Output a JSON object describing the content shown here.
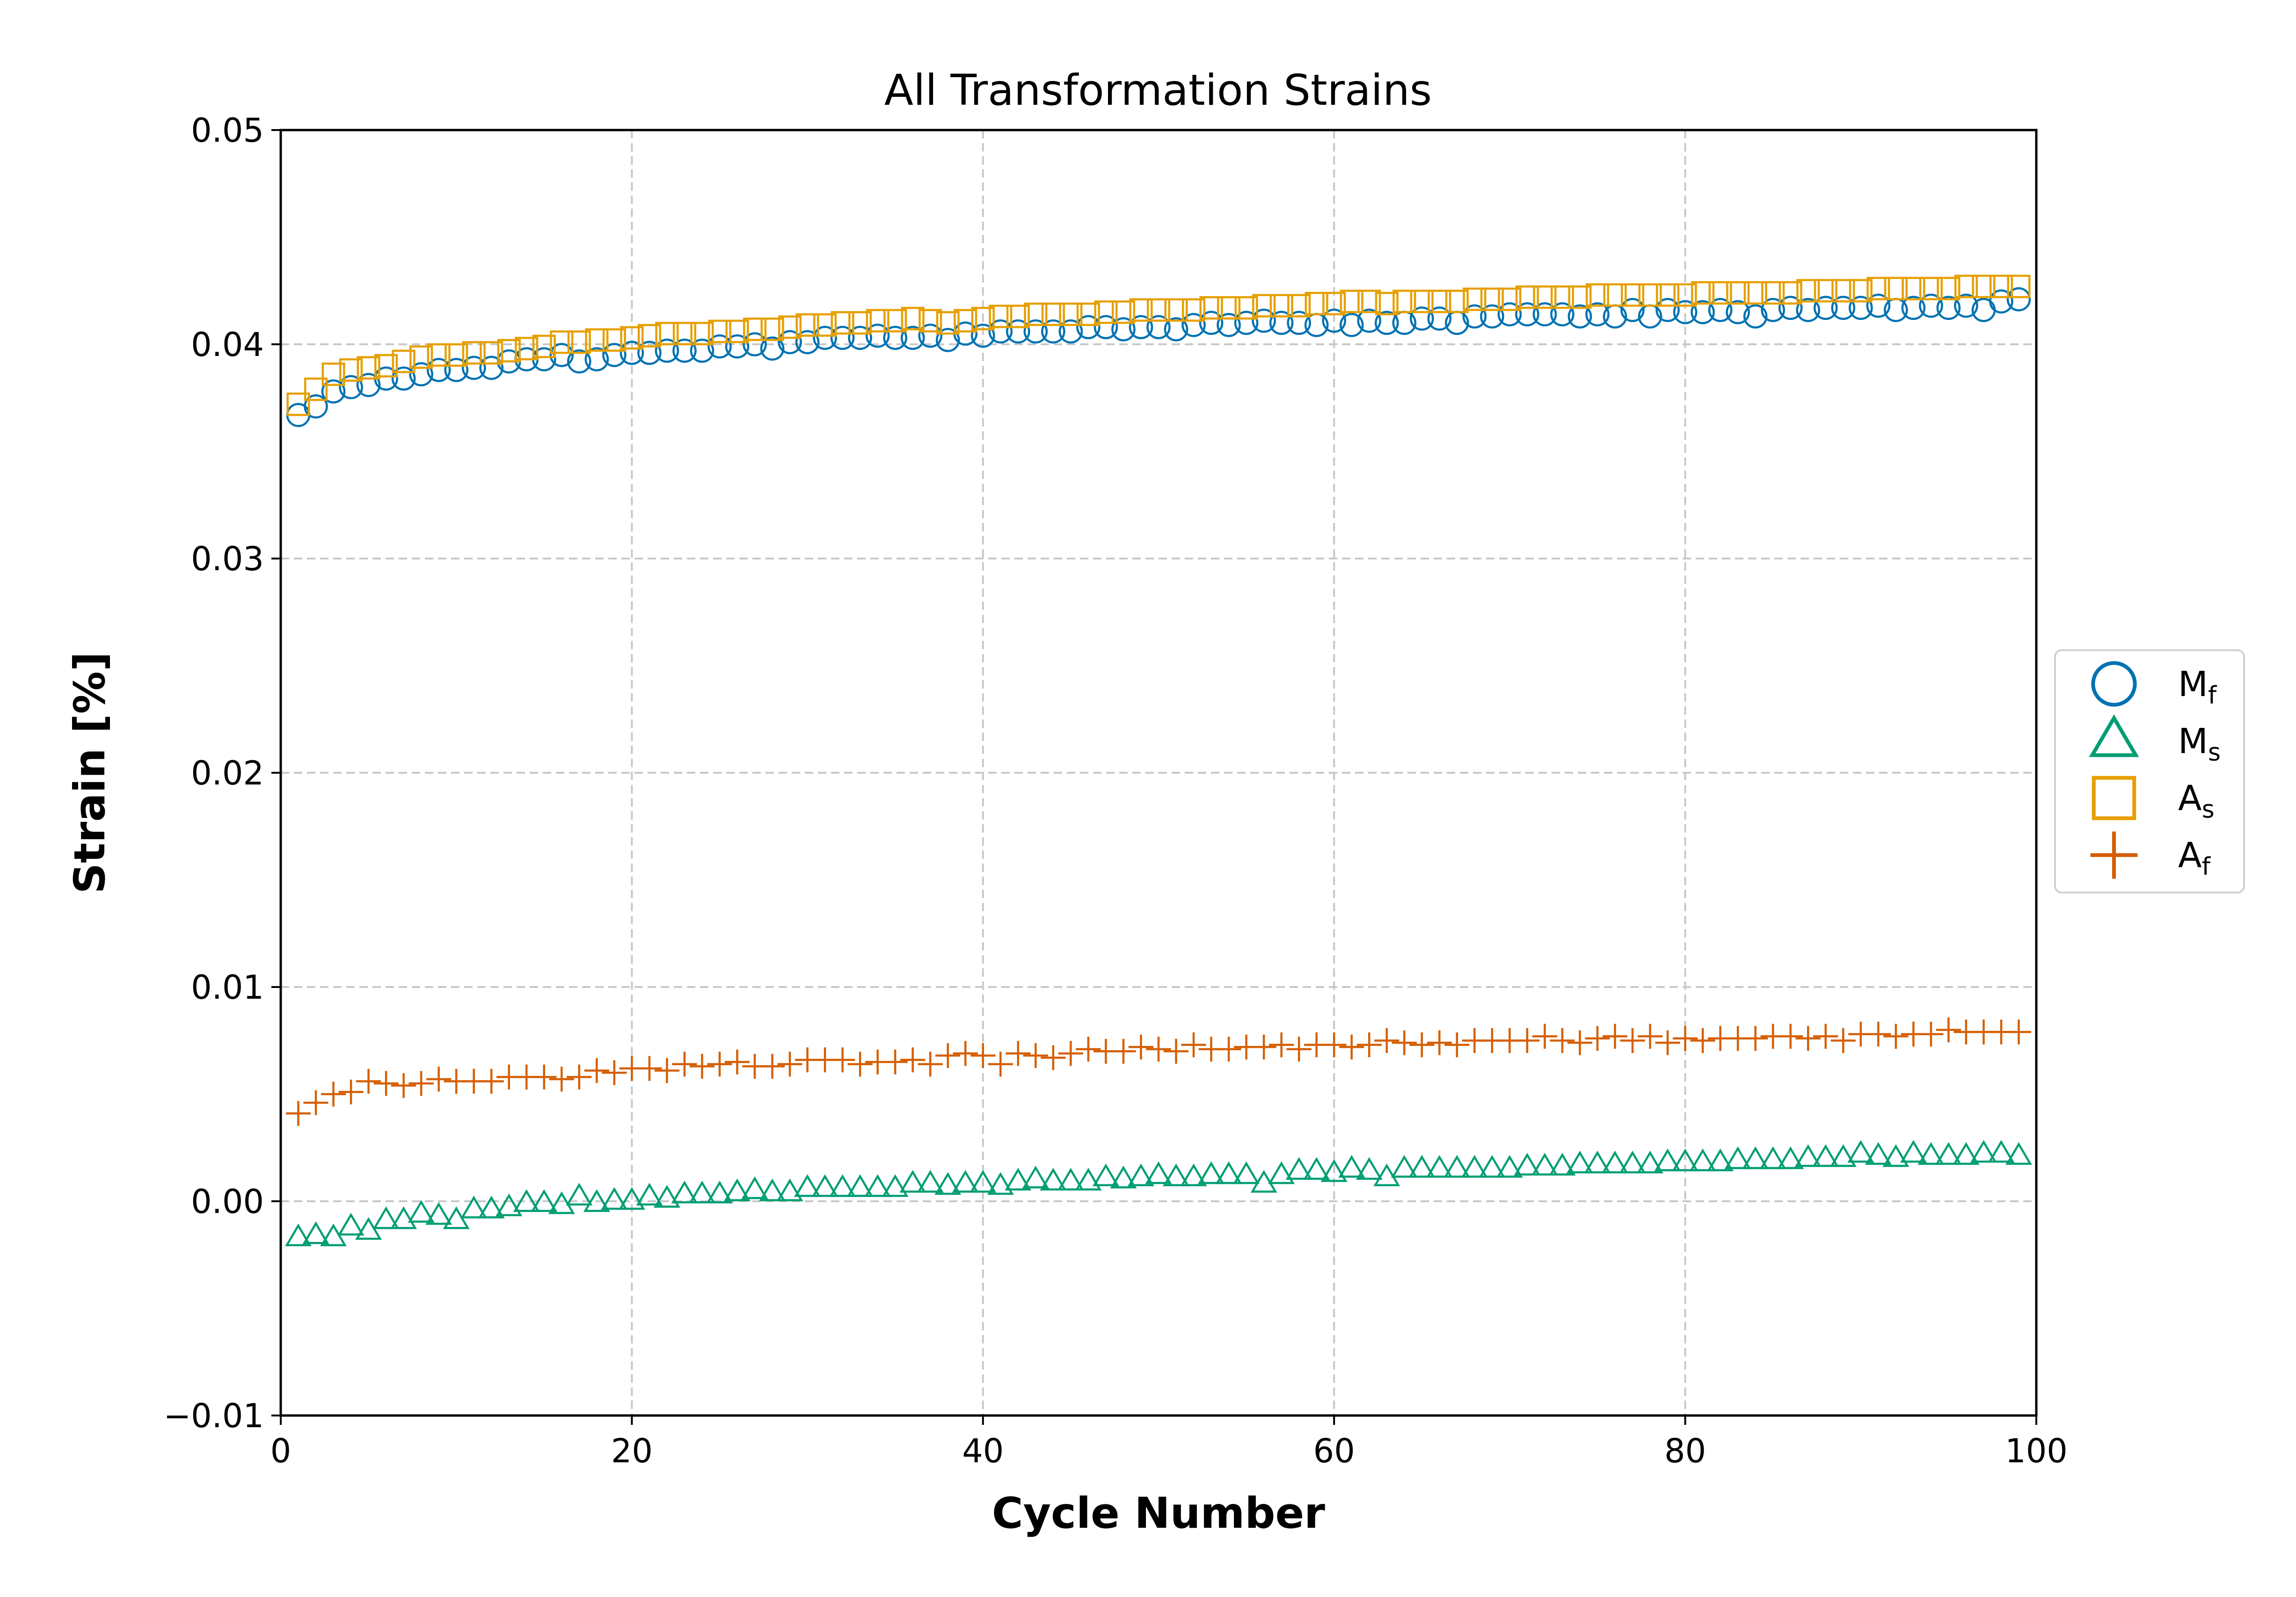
{
  "chart_data": {
    "type": "scatter",
    "title": "All Transformation Strains",
    "xlabel": "Cycle Number",
    "ylabel": "Strain [%]",
    "xlim": [
      0,
      100
    ],
    "ylim": [
      -0.01,
      0.05
    ],
    "x_ticks": [
      0,
      20,
      40,
      60,
      80,
      100
    ],
    "x_tick_labels": [
      "0",
      "20",
      "40",
      "60",
      "80",
      "100"
    ],
    "y_ticks": [
      -0.01,
      0.0,
      0.01,
      0.02,
      0.03,
      0.04,
      0.05
    ],
    "y_tick_labels": [
      "−0.01",
      "0.00",
      "0.01",
      "0.02",
      "0.03",
      "0.04",
      "0.05"
    ],
    "grid": true,
    "legend_position": "right (outside plot)",
    "x": [
      1,
      2,
      3,
      4,
      5,
      6,
      7,
      8,
      9,
      10,
      11,
      12,
      13,
      14,
      15,
      16,
      17,
      18,
      19,
      20,
      21,
      22,
      23,
      24,
      25,
      26,
      27,
      28,
      29,
      30,
      31,
      32,
      33,
      34,
      35,
      36,
      37,
      38,
      39,
      40,
      41,
      42,
      43,
      44,
      45,
      46,
      47,
      48,
      49,
      50,
      51,
      52,
      53,
      54,
      55,
      56,
      57,
      58,
      59,
      60,
      61,
      62,
      63,
      64,
      65,
      66,
      67,
      68,
      69,
      70,
      71,
      72,
      73,
      74,
      75,
      76,
      77,
      78,
      79,
      80,
      81,
      82,
      83,
      84,
      85,
      86,
      87,
      88,
      89,
      90,
      91,
      92,
      93,
      94,
      95,
      96,
      97,
      98,
      99
    ],
    "series": [
      {
        "name": "M",
        "subscript": "f",
        "marker": "circle",
        "color": "#0072B2",
        "values": [
          0.0367,
          0.0371,
          0.0378,
          0.038,
          0.0381,
          0.0384,
          0.0384,
          0.0386,
          0.0388,
          0.0388,
          0.0389,
          0.0389,
          0.0392,
          0.0393,
          0.0393,
          0.0395,
          0.0392,
          0.0393,
          0.0395,
          0.0396,
          0.0396,
          0.0397,
          0.0397,
          0.0397,
          0.0399,
          0.0399,
          0.04,
          0.0398,
          0.0401,
          0.0401,
          0.0403,
          0.0403,
          0.0403,
          0.0404,
          0.0403,
          0.0403,
          0.0404,
          0.0402,
          0.0405,
          0.0404,
          0.0406,
          0.0406,
          0.0406,
          0.0406,
          0.0406,
          0.0408,
          0.0408,
          0.0407,
          0.0408,
          0.0408,
          0.0407,
          0.0409,
          0.041,
          0.0409,
          0.041,
          0.0411,
          0.041,
          0.041,
          0.0409,
          0.0411,
          0.0409,
          0.0411,
          0.041,
          0.041,
          0.0412,
          0.0412,
          0.041,
          0.0413,
          0.0413,
          0.0414,
          0.0414,
          0.0414,
          0.0414,
          0.0413,
          0.0414,
          0.0413,
          0.0416,
          0.0413,
          0.0416,
          0.0415,
          0.0415,
          0.0416,
          0.0415,
          0.0413,
          0.0416,
          0.0417,
          0.0416,
          0.0417,
          0.0417,
          0.0417,
          0.0418,
          0.0416,
          0.0417,
          0.0418,
          0.0417,
          0.0418,
          0.0416,
          0.042,
          0.0421
        ]
      },
      {
        "name": "M",
        "subscript": "s",
        "marker": "triangle",
        "color": "#009E73",
        "values": [
          -0.0017,
          -0.0016,
          -0.0017,
          -0.0012,
          -0.0014,
          -0.0009,
          -0.0009,
          -0.0006,
          -0.0007,
          -0.0009,
          -0.0004,
          -0.0004,
          -0.0003,
          -0.0001,
          -0.0001,
          -0.0002,
          0.0002,
          -0.0001,
          0.0,
          0.0,
          0.0002,
          0.0001,
          0.0003,
          0.0003,
          0.0003,
          0.0004,
          0.0005,
          0.0004,
          0.0004,
          0.0006,
          0.0006,
          0.0006,
          0.0006,
          0.0006,
          0.0006,
          0.0008,
          0.0008,
          0.0007,
          0.0008,
          0.0008,
          0.0007,
          0.0009,
          0.001,
          0.0009,
          0.0009,
          0.0009,
          0.0011,
          0.001,
          0.0011,
          0.0012,
          0.0011,
          0.0011,
          0.0012,
          0.0012,
          0.0012,
          0.0008,
          0.0012,
          0.0014,
          0.0014,
          0.0013,
          0.0015,
          0.0014,
          0.0011,
          0.0015,
          0.0015,
          0.0015,
          0.0015,
          0.0015,
          0.0015,
          0.0015,
          0.0016,
          0.0016,
          0.0016,
          0.0017,
          0.0017,
          0.0017,
          0.0017,
          0.0017,
          0.0018,
          0.0018,
          0.0018,
          0.0018,
          0.0019,
          0.0019,
          0.0019,
          0.0019,
          0.002,
          0.002,
          0.002,
          0.0022,
          0.0021,
          0.002,
          0.0022,
          0.0021,
          0.0021,
          0.0021,
          0.0022,
          0.0022,
          0.0021
        ]
      },
      {
        "name": "A",
        "subscript": "s",
        "marker": "square",
        "color": "#E69F00",
        "values": [
          0.0372,
          0.0379,
          0.0386,
          0.0388,
          0.0389,
          0.039,
          0.0392,
          0.0394,
          0.0395,
          0.0395,
          0.0396,
          0.0396,
          0.0397,
          0.0398,
          0.0399,
          0.0401,
          0.0401,
          0.0402,
          0.0402,
          0.0403,
          0.0404,
          0.0405,
          0.0405,
          0.0405,
          0.0406,
          0.0406,
          0.0407,
          0.0407,
          0.0408,
          0.0409,
          0.0409,
          0.041,
          0.041,
          0.0411,
          0.0411,
          0.0412,
          0.0411,
          0.041,
          0.0411,
          0.0412,
          0.0413,
          0.0413,
          0.0414,
          0.0414,
          0.0414,
          0.0414,
          0.0415,
          0.0415,
          0.0416,
          0.0416,
          0.0416,
          0.0416,
          0.0417,
          0.0417,
          0.0417,
          0.0418,
          0.0418,
          0.0418,
          0.0419,
          0.0419,
          0.042,
          0.042,
          0.0419,
          0.042,
          0.042,
          0.042,
          0.042,
          0.0421,
          0.0421,
          0.0421,
          0.0422,
          0.0422,
          0.0422,
          0.0422,
          0.0423,
          0.0423,
          0.0423,
          0.0423,
          0.0423,
          0.0423,
          0.0424,
          0.0424,
          0.0424,
          0.0424,
          0.0424,
          0.0424,
          0.0425,
          0.0425,
          0.0425,
          0.0425,
          0.0426,
          0.0426,
          0.0426,
          0.0426,
          0.0426,
          0.0427,
          0.0427,
          0.0427,
          0.0427
        ]
      },
      {
        "name": "A",
        "subscript": "f",
        "marker": "plus",
        "color": "#D55E00",
        "values": [
          0.0041,
          0.0046,
          0.005,
          0.0051,
          0.0056,
          0.0055,
          0.0054,
          0.0055,
          0.0057,
          0.0056,
          0.0056,
          0.0056,
          0.0058,
          0.0058,
          0.0058,
          0.0057,
          0.0058,
          0.0061,
          0.006,
          0.0062,
          0.0062,
          0.0061,
          0.0064,
          0.0063,
          0.0064,
          0.0065,
          0.0063,
          0.0063,
          0.0064,
          0.0066,
          0.0066,
          0.0066,
          0.0064,
          0.0065,
          0.0065,
          0.0066,
          0.0064,
          0.0068,
          0.0069,
          0.0068,
          0.0064,
          0.0069,
          0.0068,
          0.0067,
          0.0069,
          0.0071,
          0.007,
          0.007,
          0.0072,
          0.0071,
          0.007,
          0.0073,
          0.0071,
          0.0071,
          0.0072,
          0.0072,
          0.0073,
          0.0071,
          0.0073,
          0.0073,
          0.0072,
          0.0073,
          0.0075,
          0.0074,
          0.0073,
          0.0074,
          0.0073,
          0.0075,
          0.0075,
          0.0075,
          0.0075,
          0.0077,
          0.0075,
          0.0074,
          0.0076,
          0.0077,
          0.0075,
          0.0077,
          0.0074,
          0.0076,
          0.0075,
          0.0076,
          0.0076,
          0.0076,
          0.0077,
          0.0077,
          0.0076,
          0.0077,
          0.0075,
          0.0078,
          0.0078,
          0.0077,
          0.0078,
          0.0078,
          0.008,
          0.0079,
          0.0079,
          0.0079,
          0.0079
        ]
      }
    ]
  }
}
